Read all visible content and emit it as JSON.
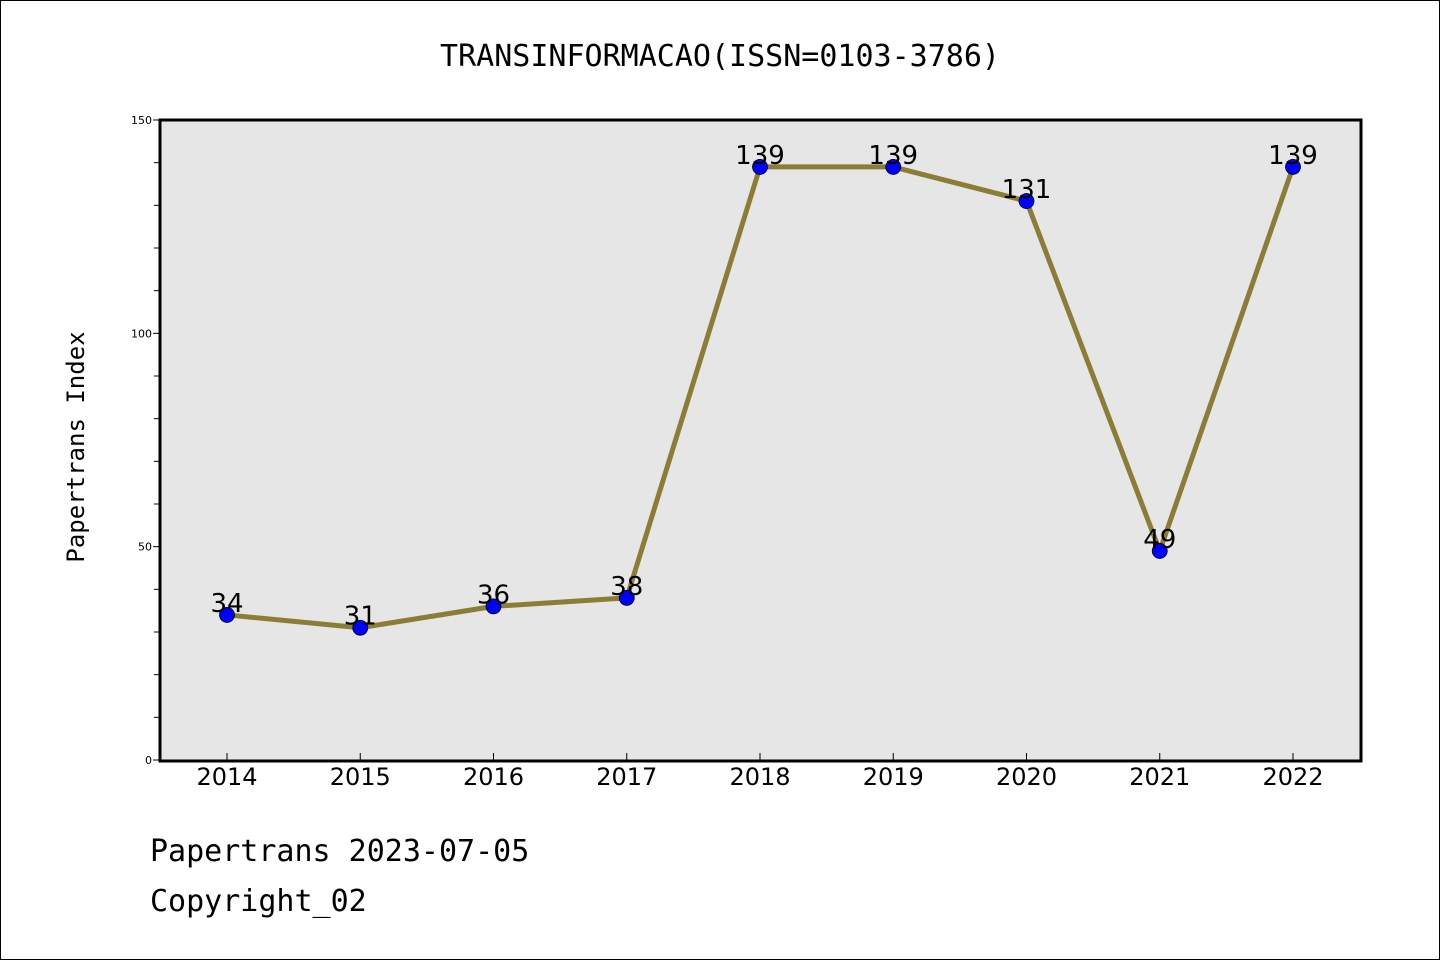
{
  "chart_data": {
    "type": "line",
    "title": "TRANSINFORMACAO(ISSN=0103-3786)",
    "xlabel": "",
    "ylabel": "Papertrans Index",
    "categories": [
      "2014",
      "2015",
      "2016",
      "2017",
      "2018",
      "2019",
      "2020",
      "2021",
      "2022"
    ],
    "series": [
      {
        "values": [
          34,
          31,
          36,
          38,
          139,
          139,
          131,
          49,
          139
        ],
        "data_labels": [
          "34",
          "31",
          "36",
          "38",
          "139",
          "139",
          "131",
          "49",
          "139"
        ],
        "line_color": "#8b7d35",
        "marker_color": "#0000ff"
      }
    ],
    "yticks": [
      "0",
      "50",
      "100",
      "150"
    ],
    "ylim": [
      0,
      150
    ],
    "grid": false,
    "legend": "none",
    "plot_background": "#e6e6e6"
  },
  "footer": {
    "line1": "Papertrans 2023-07-05",
    "line2": "Copyright_02"
  }
}
